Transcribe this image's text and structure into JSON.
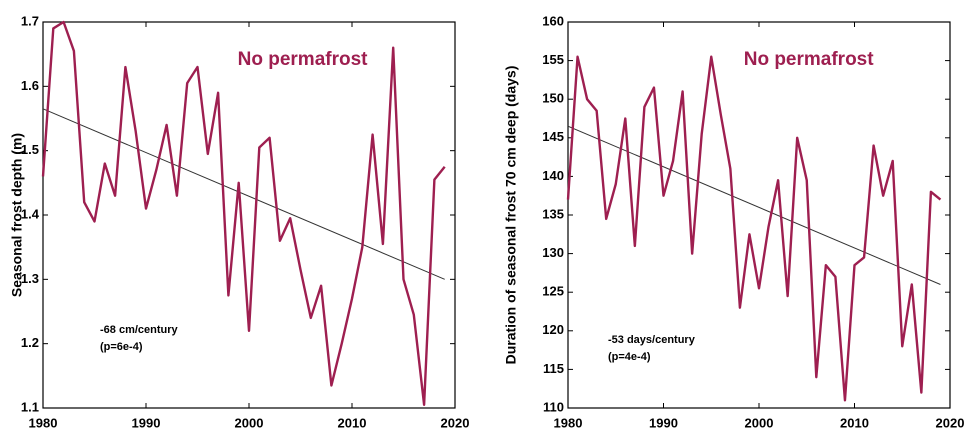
{
  "chart_data": [
    {
      "type": "line",
      "y_label": "Seasonal frost depth (m)",
      "annotation": "No permafrost",
      "note": [
        "-68 cm/century",
        "(p=6e-4)"
      ],
      "x": [
        1980,
        1981,
        1982,
        1983,
        1984,
        1985,
        1986,
        1987,
        1988,
        1989,
        1990,
        1991,
        1992,
        1993,
        1994,
        1995,
        1996,
        1997,
        1998,
        1999,
        2000,
        2001,
        2002,
        2003,
        2004,
        2005,
        2006,
        2007,
        2008,
        2009,
        2010,
        2011,
        2012,
        2013,
        2014,
        2015,
        2016,
        2017,
        2018,
        2019
      ],
      "series": [
        {
          "color": "#9e1f50",
          "values": [
            1.46,
            1.69,
            1.7,
            1.655,
            1.42,
            1.39,
            1.48,
            1.43,
            1.63,
            1.53,
            1.41,
            1.47,
            1.54,
            1.43,
            1.605,
            1.63,
            1.495,
            1.59,
            1.275,
            1.45,
            1.22,
            1.505,
            1.52,
            1.36,
            1.395,
            1.315,
            1.24,
            1.29,
            1.135,
            1.2,
            1.27,
            1.35,
            1.525,
            1.355,
            1.66,
            1.3,
            1.245,
            1.105,
            1.455,
            1.475
          ]
        }
      ],
      "trend": {
        "color": "#333333",
        "x": [
          1980,
          2019
        ],
        "values": [
          1.565,
          1.3
        ]
      },
      "xlim": [
        1980,
        2020
      ],
      "xticks": [
        1980,
        1990,
        2000,
        2010,
        2020
      ],
      "ylim": [
        1.1,
        1.7
      ],
      "yticks": [
        1.1,
        1.2,
        1.3,
        1.4,
        1.5,
        1.6,
        1.7
      ]
    },
    {
      "type": "line",
      "y_label": "Duration of seasonal frost 70 cm deep (days)",
      "annotation": "No permafrost",
      "note": [
        "-53 days/century",
        "(p=4e-4)"
      ],
      "x": [
        1980,
        1981,
        1982,
        1983,
        1984,
        1985,
        1986,
        1987,
        1988,
        1989,
        1990,
        1991,
        1992,
        1993,
        1994,
        1995,
        1996,
        1997,
        1998,
        1999,
        2000,
        2001,
        2002,
        2003,
        2004,
        2005,
        2006,
        2007,
        2008,
        2009,
        2010,
        2011,
        2012,
        2013,
        2014,
        2015,
        2016,
        2017,
        2018,
        2019
      ],
      "series": [
        {
          "color": "#9e1f50",
          "values": [
            137,
            155.5,
            150,
            148.5,
            134.5,
            139,
            147.5,
            131,
            149,
            151.5,
            137.5,
            142,
            151,
            130,
            145.5,
            155.5,
            148,
            141,
            123,
            132.5,
            125.5,
            133.5,
            139.5,
            124.5,
            145,
            139.5,
            114,
            128.5,
            127,
            111,
            128.5,
            129.5,
            144,
            137.5,
            142,
            118,
            126,
            112,
            138,
            137
          ]
        }
      ],
      "trend": {
        "color": "#333333",
        "x": [
          1980,
          2019
        ],
        "values": [
          146.5,
          126
        ]
      },
      "xlim": [
        1980,
        2020
      ],
      "xticks": [
        1980,
        1990,
        2000,
        2010,
        2020
      ],
      "ylim": [
        110,
        160
      ],
      "yticks": [
        110,
        115,
        120,
        125,
        130,
        135,
        140,
        145,
        150,
        155,
        160
      ]
    }
  ]
}
